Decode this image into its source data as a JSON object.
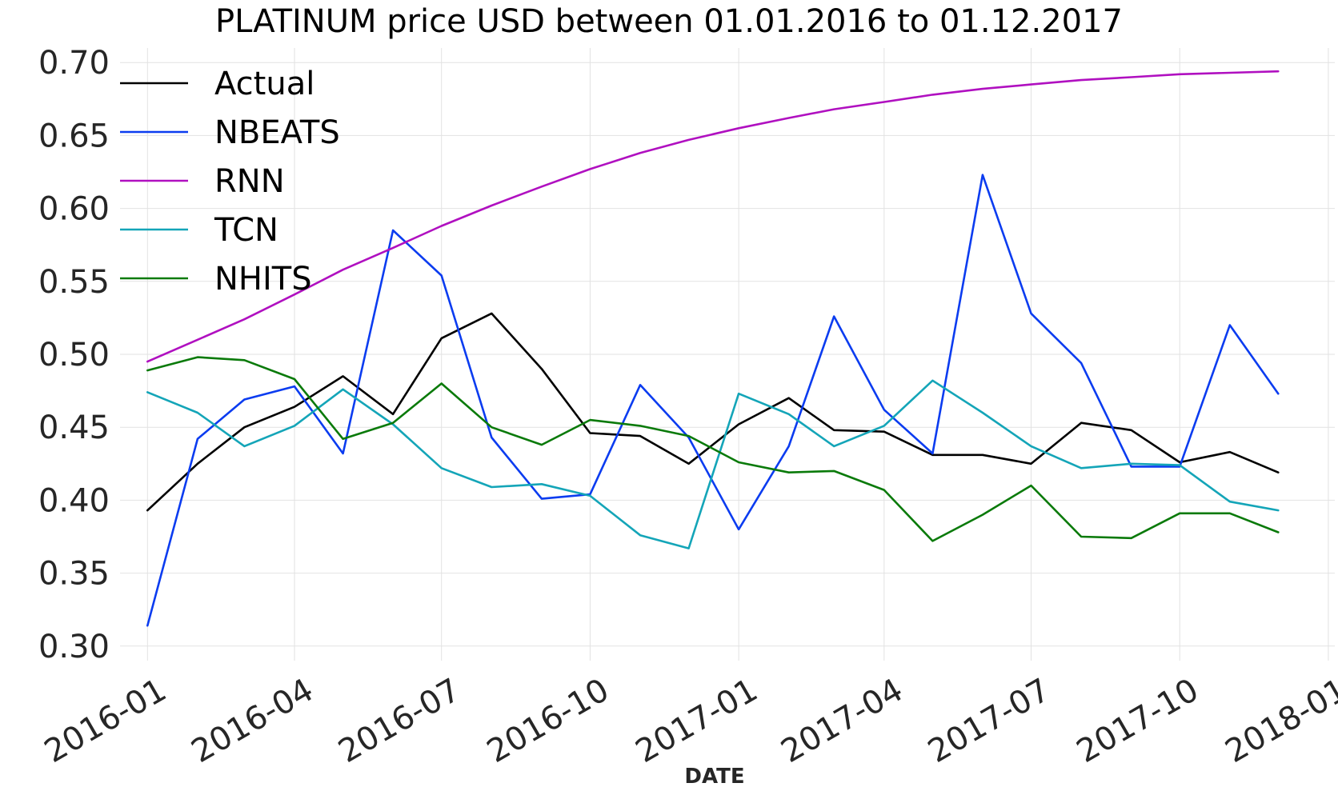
{
  "chart_data": {
    "type": "line",
    "title": "PLATINUM price USD between 01.01.2016 to 01.12.2017",
    "xlabel": "DATE",
    "ylabel": "",
    "ylim": [
      0.29,
      0.71
    ],
    "xlim": [
      "2015-12-15",
      "2018-01-05"
    ],
    "grid": true,
    "legend_position": "upper-left",
    "yticks": [
      0.3,
      0.35,
      0.4,
      0.45,
      0.5,
      0.55,
      0.6,
      0.65,
      0.7
    ],
    "ytick_labels": [
      "0.30",
      "0.35",
      "0.40",
      "0.45",
      "0.50",
      "0.55",
      "0.60",
      "0.65",
      "0.70"
    ],
    "xticks": [
      "2016-01-01",
      "2016-04-01",
      "2016-07-01",
      "2016-10-01",
      "2017-01-01",
      "2017-04-01",
      "2017-07-01",
      "2017-10-01",
      "2018-01-01"
    ],
    "xtick_labels": [
      "2016-01",
      "2016-04",
      "2016-07",
      "2016-10",
      "2017-01",
      "2017-04",
      "2017-07",
      "2017-10",
      "2018-01"
    ],
    "x": [
      "2016-01-01",
      "2016-02-01",
      "2016-03-01",
      "2016-04-01",
      "2016-05-01",
      "2016-06-01",
      "2016-07-01",
      "2016-08-01",
      "2016-09-01",
      "2016-10-01",
      "2016-11-01",
      "2016-12-01",
      "2017-01-01",
      "2017-02-01",
      "2017-03-01",
      "2017-04-01",
      "2017-05-01",
      "2017-06-01",
      "2017-07-01",
      "2017-08-01",
      "2017-09-01",
      "2017-10-01",
      "2017-11-01",
      "2017-12-01"
    ],
    "series": [
      {
        "name": "Actual",
        "color": "#000000",
        "values": [
          0.393,
          0.425,
          0.45,
          0.464,
          0.485,
          0.459,
          0.511,
          0.528,
          0.49,
          0.446,
          0.444,
          0.425,
          0.452,
          0.47,
          0.448,
          0.447,
          0.431,
          0.431,
          0.425,
          0.453,
          0.448,
          0.426,
          0.433,
          0.419
        ]
      },
      {
        "name": "NBEATS",
        "color": "#0b3cf0",
        "values": [
          0.314,
          0.442,
          0.469,
          0.478,
          0.432,
          0.585,
          0.554,
          0.443,
          0.401,
          0.404,
          0.479,
          0.443,
          0.38,
          0.437,
          0.526,
          0.462,
          0.432,
          0.623,
          0.528,
          0.494,
          0.423,
          0.423,
          0.52,
          0.473
        ]
      },
      {
        "name": "RNN",
        "color": "#b010c0",
        "values": [
          0.495,
          0.51,
          0.524,
          0.541,
          0.558,
          0.573,
          0.588,
          0.602,
          0.615,
          0.627,
          0.638,
          0.647,
          0.655,
          0.662,
          0.668,
          0.673,
          0.678,
          0.682,
          0.685,
          0.688,
          0.69,
          0.692,
          0.693,
          0.694
        ]
      },
      {
        "name": "TCN",
        "color": "#14a5b8",
        "values": [
          0.474,
          0.46,
          0.437,
          0.451,
          0.476,
          0.452,
          0.422,
          0.409,
          0.411,
          0.403,
          0.376,
          0.367,
          0.473,
          0.459,
          0.437,
          0.451,
          0.482,
          0.46,
          0.437,
          0.422,
          0.425,
          0.424,
          0.399,
          0.393
        ]
      },
      {
        "name": "NHITS",
        "color": "#0a7a0a",
        "values": [
          0.489,
          0.498,
          0.496,
          0.483,
          0.442,
          0.453,
          0.48,
          0.45,
          0.438,
          0.455,
          0.451,
          0.444,
          0.426,
          0.419,
          0.42,
          0.407,
          0.372,
          0.39,
          0.41,
          0.375,
          0.374,
          0.391,
          0.391,
          0.378
        ]
      }
    ]
  }
}
